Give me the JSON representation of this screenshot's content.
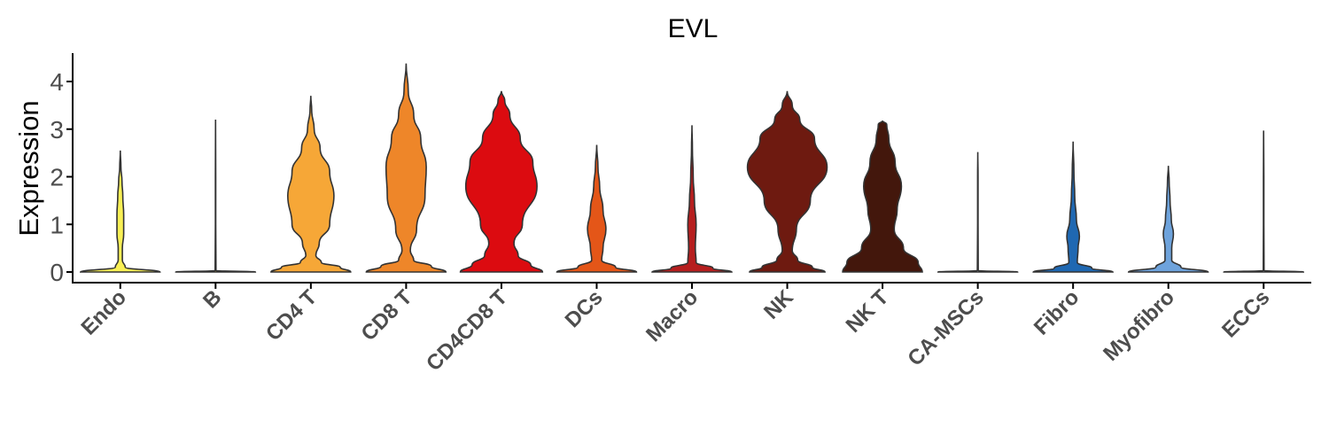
{
  "chart_data": {
    "type": "violin",
    "title": "EVL",
    "xlabel": "",
    "ylabel": "Expression",
    "ylim": [
      -0.2,
      4.6
    ],
    "yticks": [
      "0",
      "1",
      "2",
      "3",
      "4"
    ],
    "ytick_values": [
      0,
      1,
      2,
      3,
      4
    ],
    "grid": false,
    "legend": "none",
    "categories": [
      "Endo",
      "B",
      "CD4 T",
      "CD8 T",
      "CD4CD8 T",
      "DCs",
      "Macro",
      "NK",
      "NK T",
      "CA-MSCs",
      "Fibro",
      "Myofibro",
      "ECCs"
    ],
    "series": [
      {
        "category": "Endo",
        "color": "#f9f055",
        "max": 2.55,
        "profile": [
          [
            0,
            0.95
          ],
          [
            0.1,
            0.12
          ],
          [
            0.25,
            0.05
          ],
          [
            0.5,
            0.05
          ],
          [
            0.8,
            0.08
          ],
          [
            1.2,
            0.08
          ],
          [
            1.6,
            0.06
          ],
          [
            1.9,
            0.04
          ],
          [
            2.2,
            0.015
          ],
          [
            2.55,
            0
          ]
        ]
      },
      {
        "category": "B",
        "color": "#fdd231",
        "max": 3.2,
        "profile": [
          [
            0,
            0.95
          ],
          [
            0.03,
            0.01
          ],
          [
            1,
            0.005
          ],
          [
            2,
            0.005
          ],
          [
            3.2,
            0
          ]
        ]
      },
      {
        "category": "CD4 T",
        "color": "#f6a737",
        "max": 3.7,
        "profile": [
          [
            0,
            0.95
          ],
          [
            0.1,
            0.7
          ],
          [
            0.2,
            0.25
          ],
          [
            0.35,
            0.12
          ],
          [
            0.6,
            0.2
          ],
          [
            1.0,
            0.45
          ],
          [
            1.6,
            0.55
          ],
          [
            2.1,
            0.45
          ],
          [
            2.6,
            0.22
          ],
          [
            3.0,
            0.08
          ],
          [
            3.4,
            0.02
          ],
          [
            3.7,
            0
          ]
        ]
      },
      {
        "category": "CD8 T",
        "color": "#ee8629",
        "max": 4.38,
        "profile": [
          [
            0,
            0.95
          ],
          [
            0.12,
            0.6
          ],
          [
            0.25,
            0.18
          ],
          [
            0.45,
            0.1
          ],
          [
            0.9,
            0.25
          ],
          [
            1.6,
            0.45
          ],
          [
            2.2,
            0.48
          ],
          [
            2.8,
            0.35
          ],
          [
            3.3,
            0.18
          ],
          [
            3.8,
            0.05
          ],
          [
            4.38,
            0
          ]
        ]
      },
      {
        "category": "CD4CD8 T",
        "color": "#dc0b10",
        "max": 3.8,
        "profile": [
          [
            0,
            0.98
          ],
          [
            0.15,
            0.7
          ],
          [
            0.35,
            0.4
          ],
          [
            0.6,
            0.3
          ],
          [
            1.0,
            0.5
          ],
          [
            1.8,
            0.85
          ],
          [
            2.3,
            0.75
          ],
          [
            2.8,
            0.45
          ],
          [
            3.3,
            0.2
          ],
          [
            3.6,
            0.08
          ],
          [
            3.8,
            0
          ]
        ]
      },
      {
        "category": "DCs",
        "color": "#e45618",
        "max": 2.67,
        "profile": [
          [
            0,
            0.95
          ],
          [
            0.1,
            0.45
          ],
          [
            0.25,
            0.12
          ],
          [
            0.5,
            0.15
          ],
          [
            0.9,
            0.22
          ],
          [
            1.3,
            0.15
          ],
          [
            1.8,
            0.07
          ],
          [
            2.2,
            0.03
          ],
          [
            2.67,
            0
          ]
        ]
      },
      {
        "category": "Macro",
        "color": "#b61e1e",
        "max": 3.08,
        "profile": [
          [
            0,
            0.95
          ],
          [
            0.08,
            0.5
          ],
          [
            0.2,
            0.1
          ],
          [
            0.5,
            0.08
          ],
          [
            1.0,
            0.1
          ],
          [
            1.5,
            0.06
          ],
          [
            2.0,
            0.03
          ],
          [
            2.6,
            0.01
          ],
          [
            3.08,
            0
          ]
        ]
      },
      {
        "category": "NK",
        "color": "#6e1a10",
        "max": 3.8,
        "profile": [
          [
            0,
            0.9
          ],
          [
            0.1,
            0.6
          ],
          [
            0.25,
            0.25
          ],
          [
            0.45,
            0.12
          ],
          [
            0.9,
            0.22
          ],
          [
            1.5,
            0.55
          ],
          [
            2.2,
            0.95
          ],
          [
            2.8,
            0.65
          ],
          [
            3.2,
            0.3
          ],
          [
            3.5,
            0.12
          ],
          [
            3.8,
            0
          ]
        ]
      },
      {
        "category": "NK T",
        "color": "#43170c",
        "max": 3.18,
        "profile": [
          [
            0,
            0.95
          ],
          [
            0.2,
            0.85
          ],
          [
            0.5,
            0.5
          ],
          [
            0.9,
            0.28
          ],
          [
            1.3,
            0.35
          ],
          [
            1.8,
            0.45
          ],
          [
            2.3,
            0.3
          ],
          [
            2.8,
            0.15
          ],
          [
            3.1,
            0.1
          ],
          [
            3.18,
            0
          ]
        ]
      },
      {
        "category": "CA-MSCs",
        "color": "#cad9ed",
        "max": 2.52,
        "profile": [
          [
            0,
            0.95
          ],
          [
            0.03,
            0.01
          ],
          [
            1,
            0.005
          ],
          [
            2,
            0.005
          ],
          [
            2.52,
            0
          ]
        ]
      },
      {
        "category": "Fibro",
        "color": "#1f68b2",
        "max": 2.74,
        "profile": [
          [
            0,
            0.95
          ],
          [
            0.08,
            0.45
          ],
          [
            0.2,
            0.1
          ],
          [
            0.5,
            0.12
          ],
          [
            0.75,
            0.15
          ],
          [
            1.1,
            0.08
          ],
          [
            1.6,
            0.04
          ],
          [
            2.1,
            0.02
          ],
          [
            2.74,
            0
          ]
        ]
      },
      {
        "category": "Myofibro",
        "color": "#6ea3dc",
        "max": 2.23,
        "profile": [
          [
            0,
            0.95
          ],
          [
            0.1,
            0.3
          ],
          [
            0.25,
            0.08
          ],
          [
            0.5,
            0.08
          ],
          [
            0.8,
            0.12
          ],
          [
            1.1,
            0.07
          ],
          [
            1.5,
            0.04
          ],
          [
            1.9,
            0.02
          ],
          [
            2.23,
            0
          ]
        ]
      },
      {
        "category": "ECCs",
        "color": "#c9d4ea",
        "max": 2.97,
        "profile": [
          [
            0,
            0.95
          ],
          [
            0.03,
            0.01
          ],
          [
            1,
            0.005
          ],
          [
            2,
            0.005
          ],
          [
            2.97,
            0
          ]
        ]
      }
    ]
  }
}
